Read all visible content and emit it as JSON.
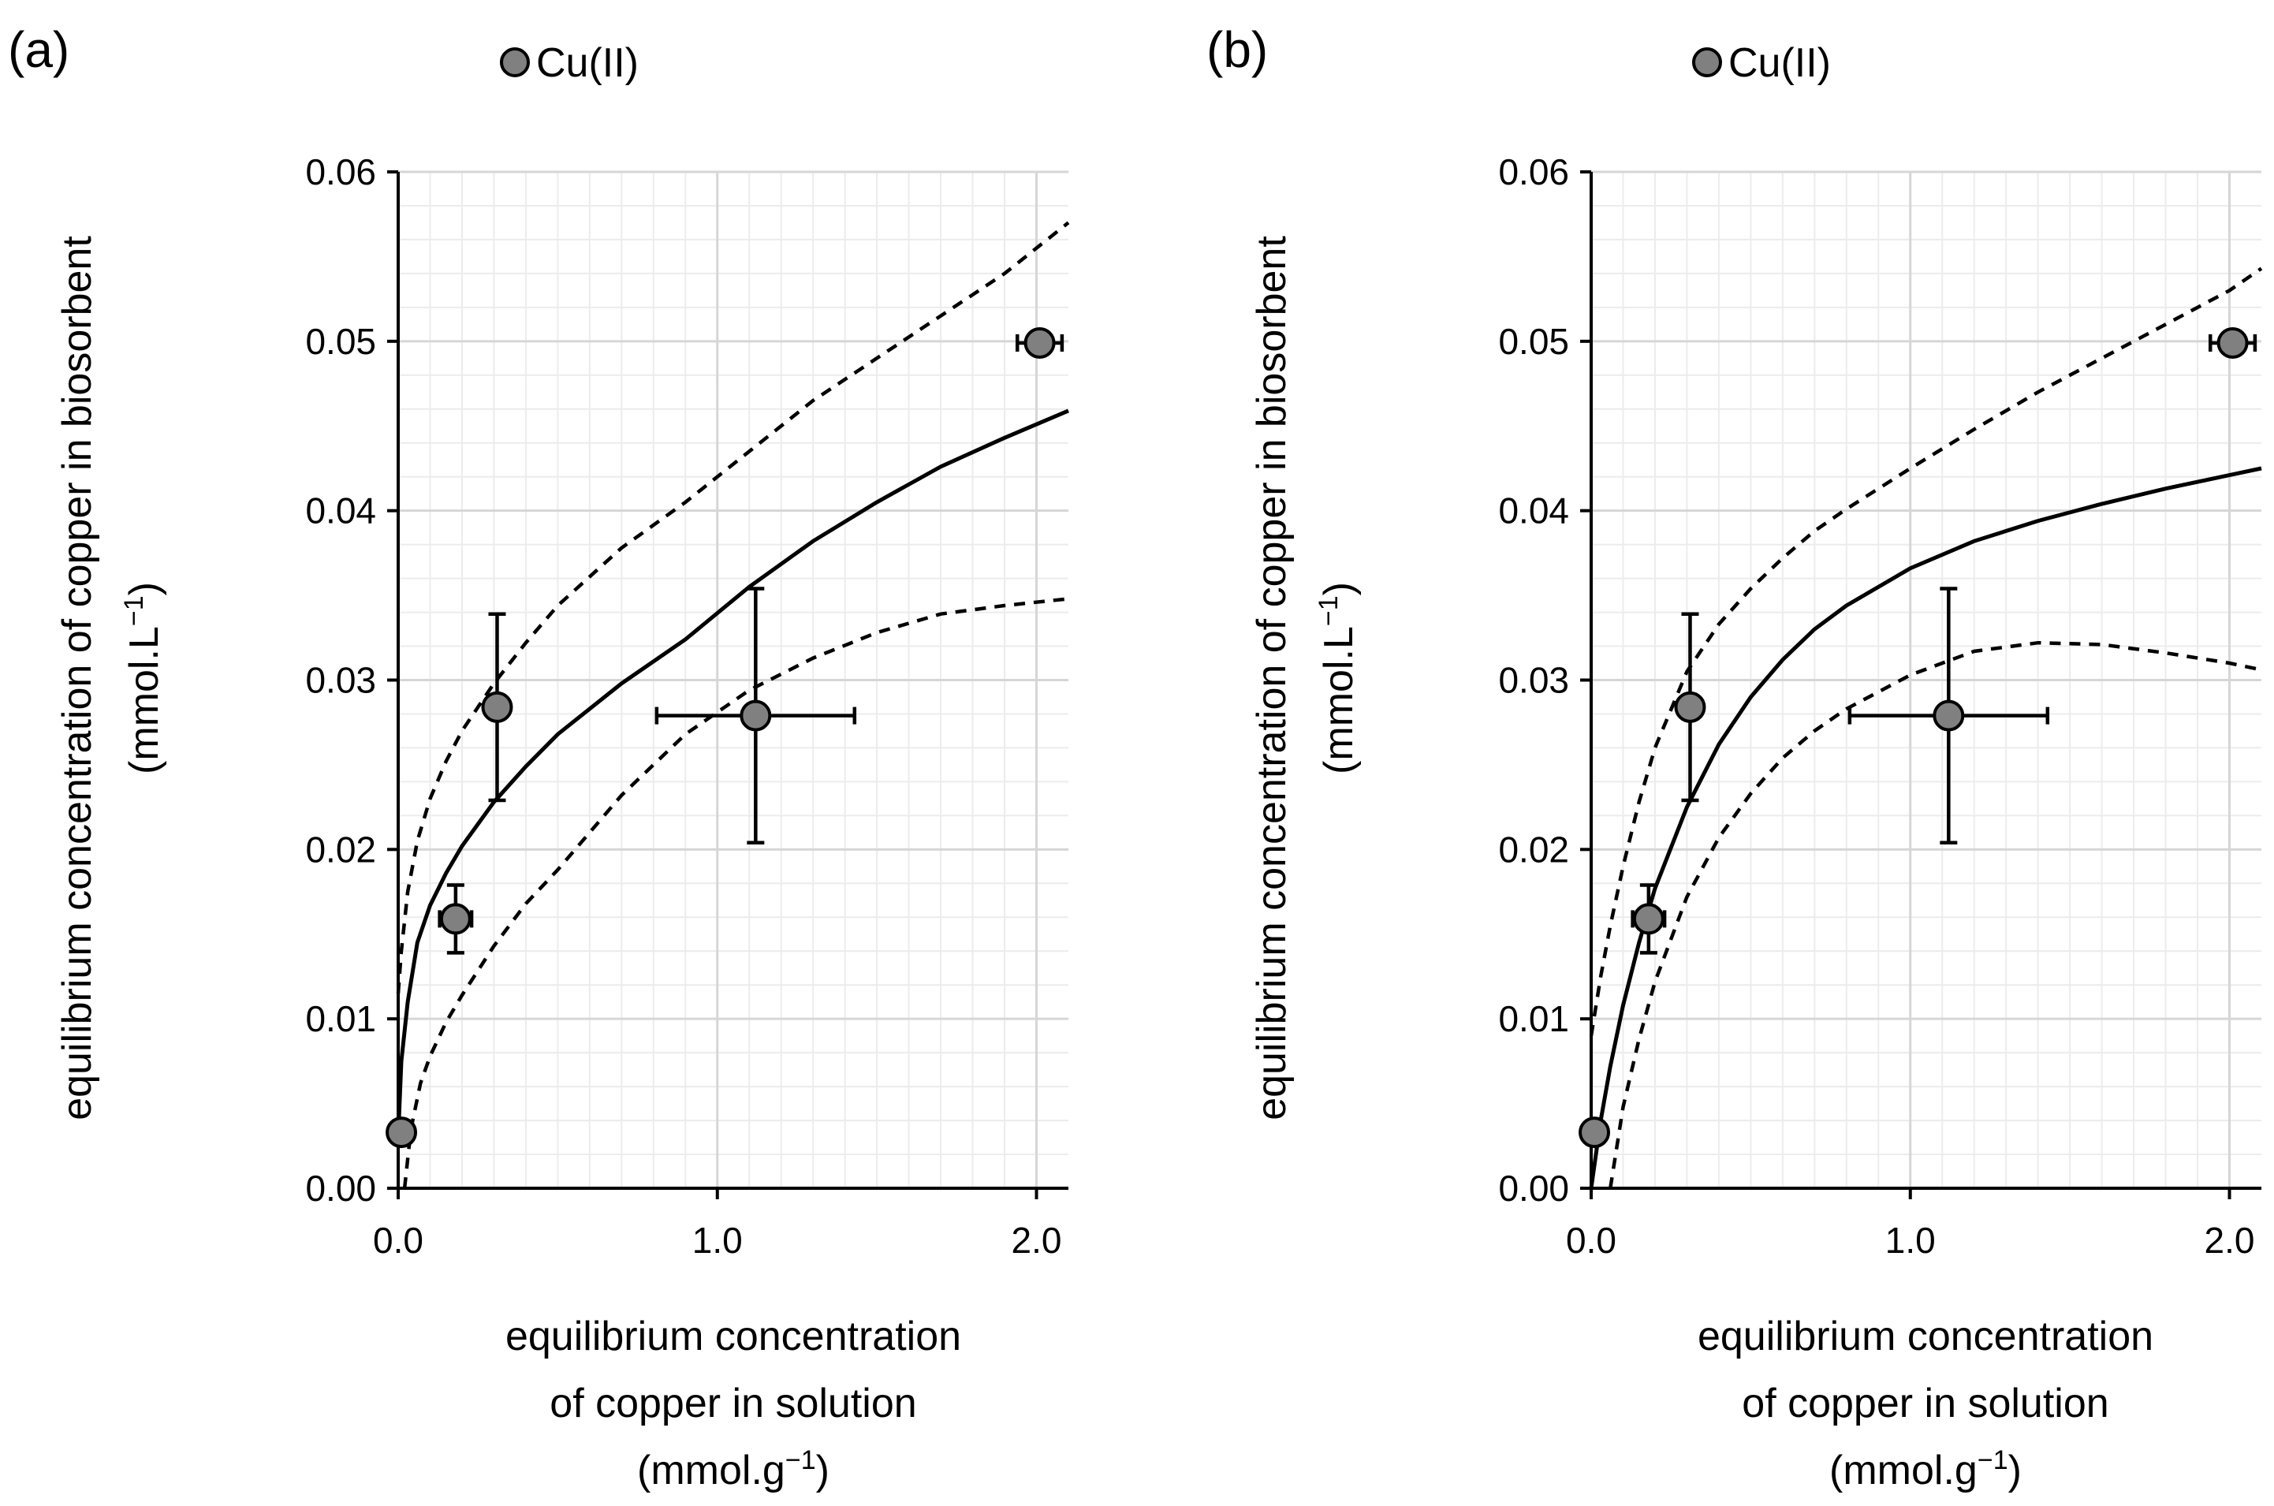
{
  "chart_data": [
    {
      "panel_label": "(a)",
      "type": "scatter",
      "legend": {
        "label": "Cu(II)",
        "marker_color": "#808080",
        "placement": "top-left"
      },
      "xlabel_lines": [
        "equilibrium concentration",
        "of copper in solution"
      ],
      "xlabel_unit": {
        "text": "(mmol.g",
        "sup": "−1",
        "close": ")"
      },
      "ylabel_line": "equilibrium concentration of copper in biosorbent",
      "ylabel_unit": {
        "text": "(mmol.L",
        "sup": "−1",
        "close": ")"
      },
      "xlim": [
        0,
        2.1
      ],
      "ylim": [
        0,
        0.06
      ],
      "xticks": [
        0.0,
        1.0,
        2.0
      ],
      "xtick_labels": [
        "0.0",
        "1.0",
        "2.0"
      ],
      "yticks": [
        0,
        0.01,
        0.02,
        0.03,
        0.04,
        0.05,
        0.06
      ],
      "ytick_labels": [
        "0.00",
        "0.01",
        "0.02",
        "0.03",
        "0.04",
        "0.05",
        "0.06"
      ],
      "grid": true,
      "series": [
        {
          "name": "Cu(II)",
          "points": [
            {
              "x": 0.01,
              "y": 0.0033,
              "xerr": 0,
              "yerr": 0
            },
            {
              "x": 0.18,
              "y": 0.0159,
              "xerr": 0.05,
              "yerr": 0.002
            },
            {
              "x": 0.31,
              "y": 0.0284,
              "xerr": 0,
              "yerr": 0.0055
            },
            {
              "x": 1.12,
              "y": 0.0279,
              "xerr": 0.31,
              "yerr": 0.0075
            },
            {
              "x": 2.01,
              "y": 0.0499,
              "xerr": 0.07,
              "yerr": 0
            }
          ]
        }
      ],
      "fit_lines": [
        {
          "style": "solid",
          "x": [
            0.0,
            0.01,
            0.03,
            0.06,
            0.1,
            0.15,
            0.2,
            0.3,
            0.4,
            0.5,
            0.7,
            0.9,
            1.1,
            1.3,
            1.5,
            1.7,
            1.9,
            2.1
          ],
          "y": [
            0.003,
            0.0075,
            0.011,
            0.0145,
            0.0167,
            0.0186,
            0.0202,
            0.0228,
            0.0249,
            0.0268,
            0.0298,
            0.0324,
            0.0355,
            0.0382,
            0.0405,
            0.0426,
            0.0443,
            0.0459
          ]
        },
        {
          "style": "dashed",
          "x": [
            0.0,
            0.01,
            0.03,
            0.06,
            0.1,
            0.15,
            0.2,
            0.3,
            0.4,
            0.5,
            0.7,
            0.9,
            1.1,
            1.3,
            1.5,
            1.7,
            1.9,
            2.1
          ],
          "y": [
            0.0115,
            0.014,
            0.0175,
            0.0205,
            0.023,
            0.0252,
            0.027,
            0.0298,
            0.0322,
            0.0344,
            0.0378,
            0.0405,
            0.0435,
            0.0465,
            0.049,
            0.0515,
            0.054,
            0.057
          ]
        },
        {
          "style": "dashed",
          "x": [
            0.02,
            0.04,
            0.07,
            0.1,
            0.15,
            0.2,
            0.3,
            0.4,
            0.5,
            0.7,
            0.9,
            1.1,
            1.3,
            1.5,
            1.7,
            1.9,
            2.1
          ],
          "y": [
            0.0,
            0.0035,
            0.0062,
            0.0078,
            0.0098,
            0.0114,
            0.0143,
            0.0168,
            0.0188,
            0.0232,
            0.0268,
            0.0294,
            0.0313,
            0.0328,
            0.0339,
            0.0344,
            0.0348
          ]
        }
      ]
    },
    {
      "panel_label": "(b)",
      "type": "scatter",
      "legend": {
        "label": "Cu(II)",
        "marker_color": "#808080",
        "placement": "top-left"
      },
      "xlabel_lines": [
        "equilibrium concentration",
        "of copper in solution"
      ],
      "xlabel_unit": {
        "text": "(mmol.g",
        "sup": "−1",
        "close": ")"
      },
      "ylabel_line": "equilibrium concentration of copper in biosorbent",
      "ylabel_unit": {
        "text": "(mmol.L",
        "sup": "−1",
        "close": ")"
      },
      "xlim": [
        0,
        2.1
      ],
      "ylim": [
        0,
        0.06
      ],
      "xticks": [
        0.0,
        1.0,
        2.0
      ],
      "xtick_labels": [
        "0.0",
        "1.0",
        "2.0"
      ],
      "yticks": [
        0,
        0.01,
        0.02,
        0.03,
        0.04,
        0.05,
        0.06
      ],
      "ytick_labels": [
        "0.00",
        "0.01",
        "0.02",
        "0.03",
        "0.04",
        "0.05",
        "0.06"
      ],
      "grid": true,
      "series": [
        {
          "name": "Cu(II)",
          "points": [
            {
              "x": 0.01,
              "y": 0.0033,
              "xerr": 0,
              "yerr": 0
            },
            {
              "x": 0.18,
              "y": 0.0159,
              "xerr": 0.05,
              "yerr": 0.002
            },
            {
              "x": 0.31,
              "y": 0.0284,
              "xerr": 0,
              "yerr": 0.0055
            },
            {
              "x": 1.12,
              "y": 0.0279,
              "xerr": 0.31,
              "yerr": 0.0075
            },
            {
              "x": 2.01,
              "y": 0.0499,
              "xerr": 0.07,
              "yerr": 0
            }
          ]
        }
      ],
      "fit_lines": [
        {
          "style": "solid",
          "x": [
            0.0,
            0.03,
            0.06,
            0.1,
            0.15,
            0.2,
            0.3,
            0.4,
            0.5,
            0.6,
            0.7,
            0.8,
            1.0,
            1.2,
            1.4,
            1.6,
            1.8,
            2.0,
            2.1
          ],
          "y": [
            0.0,
            0.004,
            0.0072,
            0.0108,
            0.0145,
            0.0177,
            0.0225,
            0.0262,
            0.029,
            0.0312,
            0.033,
            0.0344,
            0.0366,
            0.0382,
            0.0394,
            0.0404,
            0.0413,
            0.0421,
            0.0425
          ]
        },
        {
          "style": "dashed",
          "x": [
            0.0,
            0.03,
            0.06,
            0.1,
            0.15,
            0.2,
            0.3,
            0.4,
            0.5,
            0.6,
            0.7,
            0.8,
            1.0,
            1.2,
            1.4,
            1.6,
            1.8,
            2.0,
            2.1
          ],
          "y": [
            0.009,
            0.0125,
            0.0155,
            0.019,
            0.0228,
            0.026,
            0.0305,
            0.0333,
            0.0354,
            0.0372,
            0.0388,
            0.0401,
            0.0425,
            0.0448,
            0.047,
            0.049,
            0.051,
            0.053,
            0.0543
          ]
        },
        {
          "style": "dashed",
          "x": [
            0.06,
            0.1,
            0.15,
            0.2,
            0.3,
            0.4,
            0.5,
            0.6,
            0.7,
            0.8,
            1.0,
            1.2,
            1.4,
            1.6,
            1.8,
            2.0,
            2.1
          ],
          "y": [
            0.0,
            0.0048,
            0.0088,
            0.0122,
            0.0172,
            0.0207,
            0.0233,
            0.0254,
            0.027,
            0.0283,
            0.0303,
            0.0317,
            0.0322,
            0.0321,
            0.0316,
            0.031,
            0.0306
          ]
        }
      ]
    }
  ]
}
